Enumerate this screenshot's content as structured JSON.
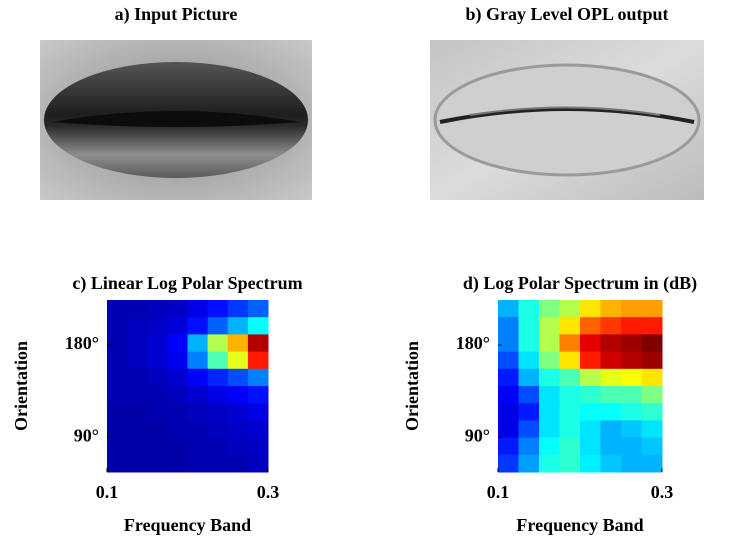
{
  "images": [
    {
      "title": "a) Input Picture"
    },
    {
      "title": "b) Gray Level OPL output"
    }
  ],
  "chart_data": [
    {
      "type": "heatmap",
      "title": "c) Linear Log Polar Spectrum",
      "xlabel": "Frequency Band",
      "ylabel": "Orientation",
      "xlim": [
        0.1,
        0.3
      ],
      "xticks": [
        0.1,
        0.3
      ],
      "ylim": [
        56,
        224
      ],
      "yticks": [
        {
          "value": 90,
          "label": "90°"
        },
        {
          "value": 180,
          "label": "180°"
        }
      ],
      "values": [
        [
          0.05,
          0.05,
          0.06,
          0.07,
          0.1,
          0.14,
          0.18,
          0.22
        ],
        [
          0.05,
          0.06,
          0.07,
          0.09,
          0.14,
          0.22,
          0.3,
          0.38
        ],
        [
          0.05,
          0.06,
          0.08,
          0.12,
          0.3,
          0.55,
          0.7,
          0.95
        ],
        [
          0.05,
          0.06,
          0.08,
          0.11,
          0.25,
          0.45,
          0.6,
          0.85
        ],
        [
          0.05,
          0.05,
          0.06,
          0.08,
          0.12,
          0.16,
          0.2,
          0.25
        ],
        [
          0.05,
          0.05,
          0.05,
          0.06,
          0.08,
          0.1,
          0.12,
          0.14
        ],
        [
          0.04,
          0.04,
          0.05,
          0.05,
          0.06,
          0.07,
          0.08,
          0.1
        ],
        [
          0.04,
          0.04,
          0.04,
          0.05,
          0.05,
          0.06,
          0.07,
          0.08
        ],
        [
          0.04,
          0.04,
          0.04,
          0.04,
          0.05,
          0.05,
          0.06,
          0.07
        ],
        [
          0.04,
          0.04,
          0.04,
          0.04,
          0.05,
          0.05,
          0.05,
          0.06
        ]
      ]
    },
    {
      "type": "heatmap",
      "title": "d) Log Polar Spectrum in (dB)",
      "xlabel": "Frequency Band",
      "ylabel": "Orientation",
      "xlim": [
        0.1,
        0.3
      ],
      "xticks": [
        0.1,
        0.3
      ],
      "ylim": [
        56,
        224
      ],
      "yticks": [
        {
          "value": 90,
          "label": "90°"
        },
        {
          "value": 180,
          "label": "180°"
        }
      ],
      "values": [
        [
          0.3,
          0.4,
          0.5,
          0.55,
          0.65,
          0.7,
          0.72,
          0.72
        ],
        [
          0.25,
          0.4,
          0.55,
          0.65,
          0.78,
          0.82,
          0.85,
          0.85
        ],
        [
          0.25,
          0.4,
          0.55,
          0.75,
          0.9,
          0.95,
          0.97,
          1.0
        ],
        [
          0.2,
          0.35,
          0.5,
          0.65,
          0.85,
          0.92,
          0.95,
          0.97
        ],
        [
          0.15,
          0.3,
          0.4,
          0.45,
          0.55,
          0.6,
          0.62,
          0.65
        ],
        [
          0.12,
          0.2,
          0.35,
          0.4,
          0.42,
          0.45,
          0.45,
          0.5
        ],
        [
          0.1,
          0.15,
          0.35,
          0.4,
          0.38,
          0.38,
          0.4,
          0.42
        ],
        [
          0.1,
          0.2,
          0.35,
          0.4,
          0.35,
          0.3,
          0.32,
          0.35
        ],
        [
          0.15,
          0.25,
          0.38,
          0.42,
          0.35,
          0.3,
          0.3,
          0.32
        ],
        [
          0.18,
          0.28,
          0.4,
          0.42,
          0.36,
          0.32,
          0.3,
          0.3
        ]
      ]
    }
  ]
}
